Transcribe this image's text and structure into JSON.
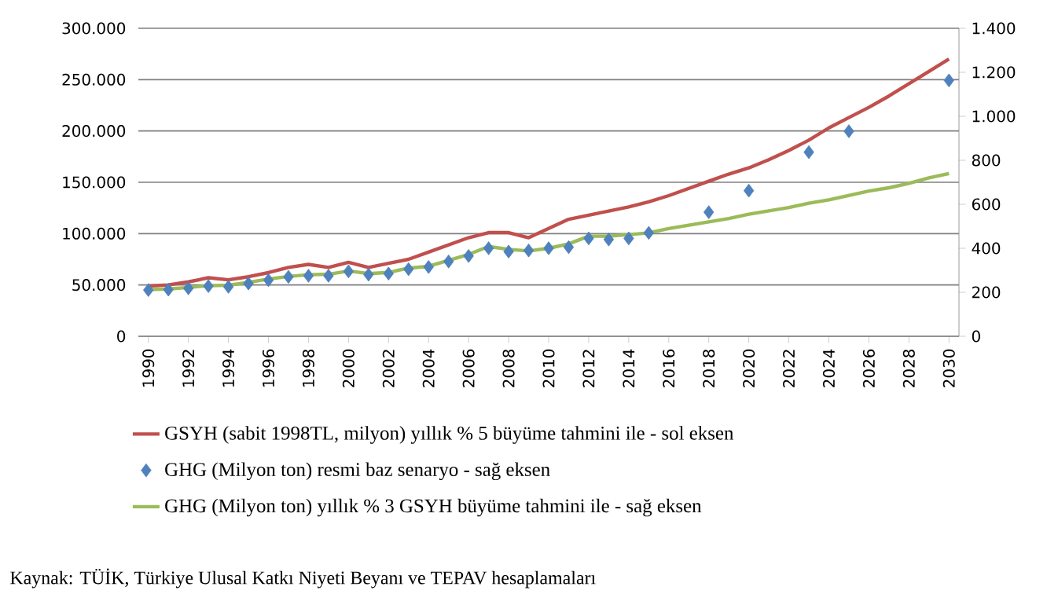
{
  "chart_data": {
    "type": "line",
    "x": [
      1990,
      1991,
      1992,
      1993,
      1994,
      1995,
      1996,
      1997,
      1998,
      1999,
      2000,
      2001,
      2002,
      2003,
      2004,
      2005,
      2006,
      2007,
      2008,
      2009,
      2010,
      2011,
      2012,
      2013,
      2014,
      2015,
      2016,
      2017,
      2018,
      2019,
      2020,
      2021,
      2022,
      2023,
      2024,
      2025,
      2026,
      2027,
      2028,
      2029,
      2030
    ],
    "xlim": [
      1989.5,
      2030.5
    ],
    "xticks": [
      1990,
      1992,
      1994,
      1996,
      1998,
      2000,
      2002,
      2004,
      2006,
      2008,
      2010,
      2012,
      2014,
      2016,
      2018,
      2020,
      2022,
      2024,
      2026,
      2028,
      2030
    ],
    "ylim": [
      0,
      300000
    ],
    "yticks": [
      {
        "value": 0,
        "label": "0"
      },
      {
        "value": 50000,
        "label": "50.000"
      },
      {
        "value": 100000,
        "label": "100.000"
      },
      {
        "value": 150000,
        "label": "150.000"
      },
      {
        "value": 200000,
        "label": "200.000"
      },
      {
        "value": 250000,
        "label": "250.000"
      },
      {
        "value": 300000,
        "label": "300.000"
      }
    ],
    "y2lim": [
      0,
      1400
    ],
    "y2ticks": [
      {
        "value": 0,
        "label": "0"
      },
      {
        "value": 200,
        "label": "200"
      },
      {
        "value": 400,
        "label": "400"
      },
      {
        "value": 600,
        "label": "600"
      },
      {
        "value": 800,
        "label": "800"
      },
      {
        "value": 1000,
        "label": "1.000"
      },
      {
        "value": 1200,
        "label": "1.200"
      },
      {
        "value": 1400,
        "label": "1.400"
      }
    ],
    "grid": "y",
    "legend": "bottom",
    "series": [
      {
        "name": "GSYH (sabit 1998TL, milyon) yıllık % 5 büyüme tahmini ile - sol eksen",
        "color": "#c0504d",
        "values": [
          49000,
          50000,
          53000,
          57000,
          55000,
          58000,
          62000,
          67000,
          70000,
          67000,
          72000,
          67000,
          71000,
          75000,
          82000,
          89000,
          96000,
          101000,
          101000,
          96000,
          105000,
          114000,
          118000,
          122000,
          126000,
          131000,
          137000,
          144000,
          151000,
          158000,
          164000,
          172000,
          181000,
          191000,
          203000,
          213000,
          223000,
          234000,
          246000,
          258000,
          270000
        ]
      },
      {
        "name": "GHG (Milyon ton) resmi baz senaryo - sağ eksen",
        "type": "scatter",
        "marker": "diamond",
        "axis": "y2",
        "color": "#4f81bd",
        "x": [
          1990,
          1991,
          1992,
          1993,
          1994,
          1995,
          1996,
          1997,
          1998,
          1999,
          2000,
          2001,
          2002,
          2003,
          2004,
          2005,
          2006,
          2007,
          2008,
          2009,
          2010,
          2011,
          2012,
          2013,
          2014,
          2015,
          2018,
          2020,
          2023,
          2025,
          2030
        ],
        "values": [
          210,
          212,
          218,
          228,
          225,
          240,
          255,
          270,
          275,
          275,
          295,
          280,
          285,
          305,
          315,
          340,
          365,
          400,
          385,
          390,
          400,
          405,
          445,
          440,
          445,
          470,
          564,
          662,
          837,
          932,
          1163
        ]
      },
      {
        "name": "GHG (Milyon ton) yıllık % 3 GSYH büyüme tahmini ile - sağ eksen",
        "axis": "y2",
        "color": "#9bbb59",
        "values": [
          212,
          215,
          222,
          230,
          232,
          245,
          260,
          272,
          280,
          282,
          297,
          285,
          290,
          310,
          318,
          345,
          372,
          408,
          395,
          388,
          400,
          420,
          455,
          455,
          462,
          470,
          490,
          505,
          520,
          535,
          555,
          570,
          585,
          605,
          620,
          640,
          660,
          675,
          695,
          720,
          740
        ]
      }
    ],
    "annotations": [
      "Kaynak: TÜİK, Türkiye Ulusal Katkı Niyeti Beyanı ve TEPAV hesaplamaları"
    ]
  }
}
